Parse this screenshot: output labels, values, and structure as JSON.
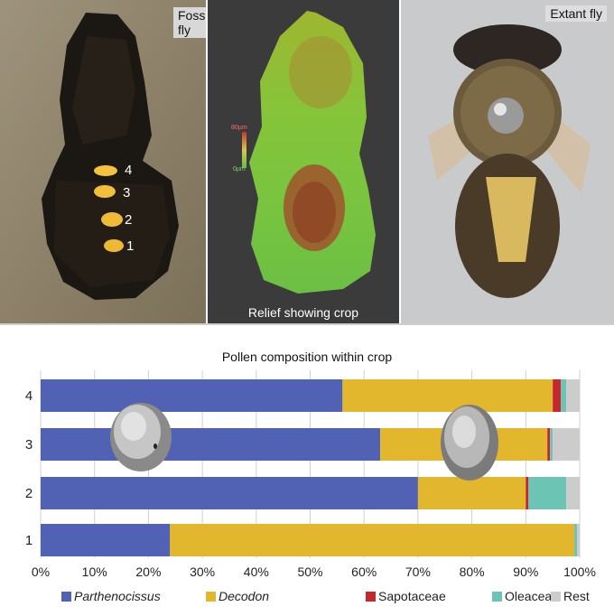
{
  "panels": {
    "fossil_title": "Fossil fly",
    "relief_caption": "Relief showing crop",
    "extant_title": "Extant fly",
    "relief_scale_top": "80µm",
    "relief_scale_bottom": "0µm",
    "sample_numbers": [
      "4",
      "3",
      "2",
      "1"
    ]
  },
  "colors": {
    "Parthenocissus": "#5162b4",
    "Decodon": "#e2b72e",
    "Sapotaceae": "#c4272c",
    "Oleaceae": "#6cc5b4",
    "Rest": "#cccccc"
  },
  "chart_data": {
    "type": "bar",
    "orientation": "horizontal",
    "stacked": true,
    "title": "Pollen composition within crop",
    "categories": [
      "4",
      "3",
      "2",
      "1"
    ],
    "series": [
      {
        "name": "Parthenocissus",
        "values": [
          56,
          63,
          70,
          24
        ]
      },
      {
        "name": "Decodon",
        "values": [
          39,
          31,
          20,
          75
        ]
      },
      {
        "name": "Sapotaceae",
        "values": [
          1.5,
          0.5,
          0.5,
          0
        ]
      },
      {
        "name": "Oleaceae",
        "values": [
          1,
          0.5,
          7,
          0.5
        ]
      },
      {
        "name": "Rest",
        "values": [
          2.5,
          5,
          2.5,
          0.5
        ]
      }
    ],
    "xlim": [
      0,
      100
    ],
    "x_ticks": [
      "0%",
      "10%",
      "20%",
      "30%",
      "40%",
      "50%",
      "60%",
      "70%",
      "80%",
      "90%",
      "100%"
    ],
    "grid": true,
    "legend_position": "bottom"
  }
}
